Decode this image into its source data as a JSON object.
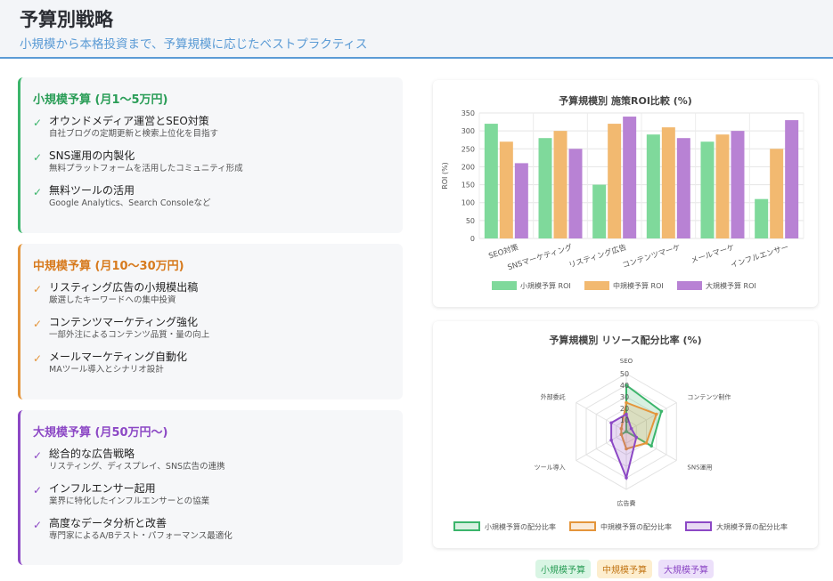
{
  "header": {
    "title": "予算別戦略",
    "subtitle": "小規模から本格投資まで、予算規模に応じたベストプラクティス"
  },
  "cards": [
    {
      "title": "小規模予算 (月1〜5万円)",
      "items": [
        {
          "title": "オウンドメディア運営とSEO対策",
          "desc": "自社ブログの定期更新と検索上位化を目指す"
        },
        {
          "title": "SNS運用の内製化",
          "desc": "無料プラットフォームを活用したコミュニティ形成"
        },
        {
          "title": "無料ツールの活用",
          "desc": "Google Analytics、Search Consoleなど"
        }
      ]
    },
    {
      "title": "中規模予算 (月10〜30万円)",
      "items": [
        {
          "title": "リスティング広告の小規模出稿",
          "desc": "厳選したキーワードへの集中投資"
        },
        {
          "title": "コンテンツマーケティング強化",
          "desc": "一部外注によるコンテンツ品質・量の向上"
        },
        {
          "title": "メールマーケティング自動化",
          "desc": "MAツール導入とシナリオ設計"
        }
      ]
    },
    {
      "title": "大規模予算 (月50万円〜)",
      "items": [
        {
          "title": "総合的な広告戦略",
          "desc": "リスティング、ディスプレイ、SNS広告の連携"
        },
        {
          "title": "インフルエンサー起用",
          "desc": "業界に特化したインフルエンサーとの協業"
        },
        {
          "title": "高度なデータ分析と改善",
          "desc": "専門家によるA/Bテスト・パフォーマンス最適化"
        }
      ]
    }
  ],
  "check_icon": "✓",
  "colors": {
    "small": "#3bb56b",
    "medium": "#e4953b",
    "large": "#8c48c5"
  },
  "chart_data": [
    {
      "type": "bar",
      "title": "予算規模別 施策ROI比較 (%)",
      "xlabel": "",
      "ylabel": "ROI (%)",
      "ylim": [
        0,
        350
      ],
      "yticks": [
        0,
        50,
        100,
        150,
        200,
        250,
        300,
        350
      ],
      "categories": [
        "SEO対策",
        "SNSマーケティング",
        "リスティング広告",
        "コンテンツマーケ",
        "メールマーケ",
        "インフルエンサー"
      ],
      "series": [
        {
          "name": "小規模予算 ROI",
          "values": [
            320,
            280,
            150,
            290,
            270,
            110
          ],
          "color": "#7fd99b"
        },
        {
          "name": "中規模予算 ROI",
          "values": [
            270,
            300,
            320,
            310,
            290,
            250
          ],
          "color": "#f2b970"
        },
        {
          "name": "大規模予算 ROI",
          "values": [
            210,
            250,
            340,
            280,
            300,
            330
          ],
          "color": "#b882d4"
        }
      ],
      "grid": true,
      "legend": "bottom"
    },
    {
      "type": "radar",
      "title": "予算規模別 リソース配分比率 (%)",
      "axes": [
        "SEO",
        "コンテンツ制作",
        "SNS運用",
        "広告費",
        "ツール導入",
        "外部委託"
      ],
      "rlim": [
        0,
        50
      ],
      "rticks": [
        0,
        10,
        20,
        30,
        40,
        50
      ],
      "series": [
        {
          "name": "小規模予算の配分比率",
          "values": [
            40,
            35,
            25,
            0,
            5,
            0
          ],
          "color": "#3bb56b"
        },
        {
          "name": "中規模予算の配分比率",
          "values": [
            25,
            30,
            20,
            15,
            5,
            5
          ],
          "color": "#e4953b"
        },
        {
          "name": "大規模予算の配分比率",
          "values": [
            15,
            5,
            10,
            40,
            15,
            15
          ],
          "color": "#8c48c5"
        }
      ],
      "legend": "bottom"
    }
  ],
  "badges": [
    "小規模予算",
    "中規模予算",
    "大規模予算"
  ]
}
